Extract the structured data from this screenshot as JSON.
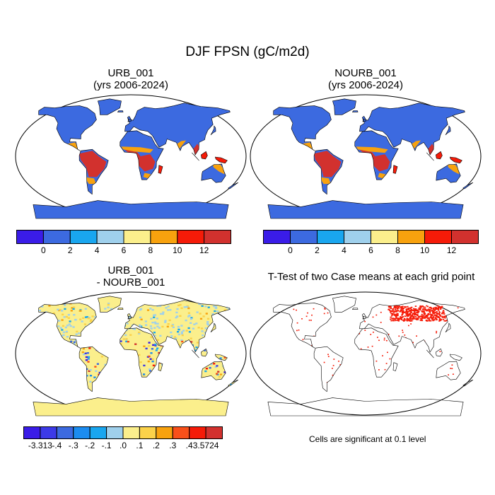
{
  "title": "DJF FPSN (gC/m2d)",
  "panels": [
    {
      "line1": "URB_001",
      "line2": "(yrs 2006-2024)"
    },
    {
      "line1": "NOURB_001",
      "line2": "(yrs 2006-2024)"
    },
    {
      "line1": "URB_001",
      "line2": "- NOURB_001"
    },
    {
      "line1": "T-Test of two Case means at each grid point",
      "line2": ""
    }
  ],
  "colorbar_abs": {
    "colors": [
      "#3a1ce8",
      "#3c6ae0",
      "#19a6ef",
      "#9fd0ec",
      "#fbef8c",
      "#f8a20e",
      "#f51b08",
      "#d2312e"
    ],
    "labels": [
      "0",
      "2",
      "4",
      "6",
      "8",
      "10",
      "12"
    ]
  },
  "colorbar_diff": {
    "colors": [
      "#3a1ce8",
      "#3c3ae8",
      "#3c6ae0",
      "#1b8cf0",
      "#19a6ef",
      "#9fd0ec",
      "#fbef8c",
      "#fbd24a",
      "#f8a20e",
      "#f8501a",
      "#f51b08",
      "#d2312e"
    ],
    "labels": [
      "-3.313",
      "-.4",
      "-.3",
      "-.2",
      "-.1",
      ".0",
      ".1",
      ".2",
      ".3",
      ".4",
      "3.5724"
    ]
  },
  "note": "Cells are significant at 0.1 level",
  "colors": {
    "ocean": "#ffffff",
    "outline": "#000000",
    "land_base": "#3c6ae0",
    "tropics_high": "#d2312e",
    "tropics_mid": "#f51b08",
    "transition": "#f8a20e",
    "diff_base": "#fbef8c",
    "significant": "#f51b08"
  }
}
